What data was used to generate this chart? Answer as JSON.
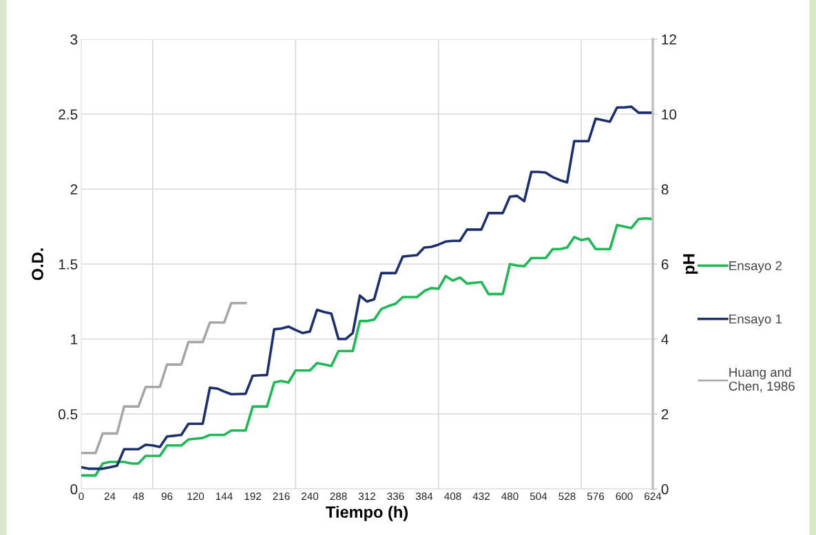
{
  "chart_data": {
    "type": "line",
    "xlabel": "Tiempo (h)",
    "ylabel": "O.D.",
    "y2label": "pH",
    "categories": [
      "0",
      null,
      null,
      null,
      "24",
      null,
      null,
      null,
      "48",
      null,
      null,
      null,
      "96",
      null,
      null,
      null,
      "120",
      null,
      null,
      null,
      "144",
      null,
      null,
      null,
      "192",
      null,
      null,
      null,
      "216",
      null,
      null,
      null,
      "240",
      null,
      null,
      null,
      "288",
      null,
      null,
      null,
      "312",
      null,
      null,
      null,
      "336",
      null,
      null,
      null,
      "384",
      null,
      null,
      null,
      "408",
      null,
      null,
      null,
      "432",
      null,
      null,
      null,
      "480",
      null,
      null,
      null,
      "504",
      null,
      null,
      null,
      "528",
      null,
      null,
      null,
      "576",
      null,
      null,
      null,
      "600",
      null,
      null,
      null,
      "624"
    ],
    "series": [
      {
        "name": "Ensayo 2",
        "color": "#1db954",
        "values": [
          0.09,
          0.09,
          0.09,
          0.17,
          0.18,
          0.18,
          0.18,
          0.17,
          0.17,
          0.22,
          0.22,
          0.22,
          0.29,
          0.29,
          0.29,
          0.33,
          0.335,
          0.34,
          0.36,
          0.36,
          0.36,
          0.39,
          0.39,
          0.39,
          0.55,
          0.55,
          0.55,
          0.71,
          0.72,
          0.71,
          0.79,
          0.79,
          0.79,
          0.84,
          0.83,
          0.82,
          0.92,
          0.92,
          0.92,
          1.12,
          1.12,
          1.13,
          1.2,
          1.22,
          1.235,
          1.28,
          1.28,
          1.28,
          1.32,
          1.34,
          1.335,
          1.42,
          1.39,
          1.41,
          1.37,
          1.375,
          1.38,
          1.3,
          1.3,
          1.3,
          1.5,
          1.49,
          1.485,
          1.54,
          1.54,
          1.54,
          1.6,
          1.6,
          1.61,
          1.68,
          1.66,
          1.67,
          1.6,
          1.6,
          1.6,
          1.76,
          1.75,
          1.74,
          1.8,
          1.805,
          1.8
        ]
      },
      {
        "name": "Ensayo 1",
        "color": "#1b2f6e",
        "values": [
          0.145,
          0.135,
          0.135,
          0.135,
          0.145,
          0.155,
          0.265,
          0.265,
          0.265,
          0.295,
          0.29,
          0.28,
          0.35,
          0.355,
          0.36,
          0.435,
          0.435,
          0.435,
          0.675,
          0.67,
          0.65,
          0.632,
          0.633,
          0.635,
          0.755,
          0.758,
          0.76,
          1.065,
          1.07,
          1.083,
          1.06,
          1.04,
          1.05,
          1.195,
          1.18,
          1.17,
          1.0,
          1.0,
          1.04,
          1.29,
          1.25,
          1.265,
          1.44,
          1.44,
          1.44,
          1.55,
          1.555,
          1.56,
          1.61,
          1.615,
          1.63,
          1.65,
          1.655,
          1.655,
          1.73,
          1.73,
          1.73,
          1.84,
          1.84,
          1.84,
          1.95,
          1.955,
          1.92,
          2.115,
          2.115,
          2.11,
          2.08,
          2.06,
          2.045,
          2.32,
          2.32,
          2.32,
          2.47,
          2.46,
          2.45,
          2.545,
          2.545,
          2.55,
          2.51,
          2.51,
          2.51
        ]
      },
      {
        "name": "Huang and\nChen, 1986",
        "color": "#a6a6a6",
        "values": [
          0.24,
          0.24,
          0.24,
          0.37,
          0.37,
          0.37,
          0.55,
          0.55,
          0.55,
          0.68,
          0.68,
          0.68,
          0.83,
          0.83,
          0.83,
          0.98,
          0.98,
          0.98,
          1.11,
          1.11,
          1.11,
          1.24,
          1.24,
          1.24,
          null,
          null,
          null,
          null,
          null,
          null,
          null,
          null,
          null,
          null,
          null,
          null,
          null,
          null,
          null,
          null,
          null,
          null,
          null,
          null,
          null,
          null,
          null,
          null,
          null,
          null,
          null,
          null,
          null,
          null,
          null,
          null,
          null,
          null,
          null,
          null,
          null,
          null,
          null,
          null,
          null,
          null,
          null,
          null,
          null,
          null,
          null,
          null,
          null,
          null,
          null,
          null,
          null,
          null,
          null,
          null,
          null
        ]
      }
    ],
    "ylim": [
      0,
      3
    ],
    "yticks": [
      0,
      0.5,
      1,
      1.5,
      2,
      2.5,
      3
    ],
    "y2lim": [
      0,
      12
    ],
    "y2ticks": [
      0,
      2,
      4,
      6,
      8,
      10,
      12
    ],
    "grid": true,
    "legend": "right",
    "marker": "none",
    "line_style": "solid"
  }
}
